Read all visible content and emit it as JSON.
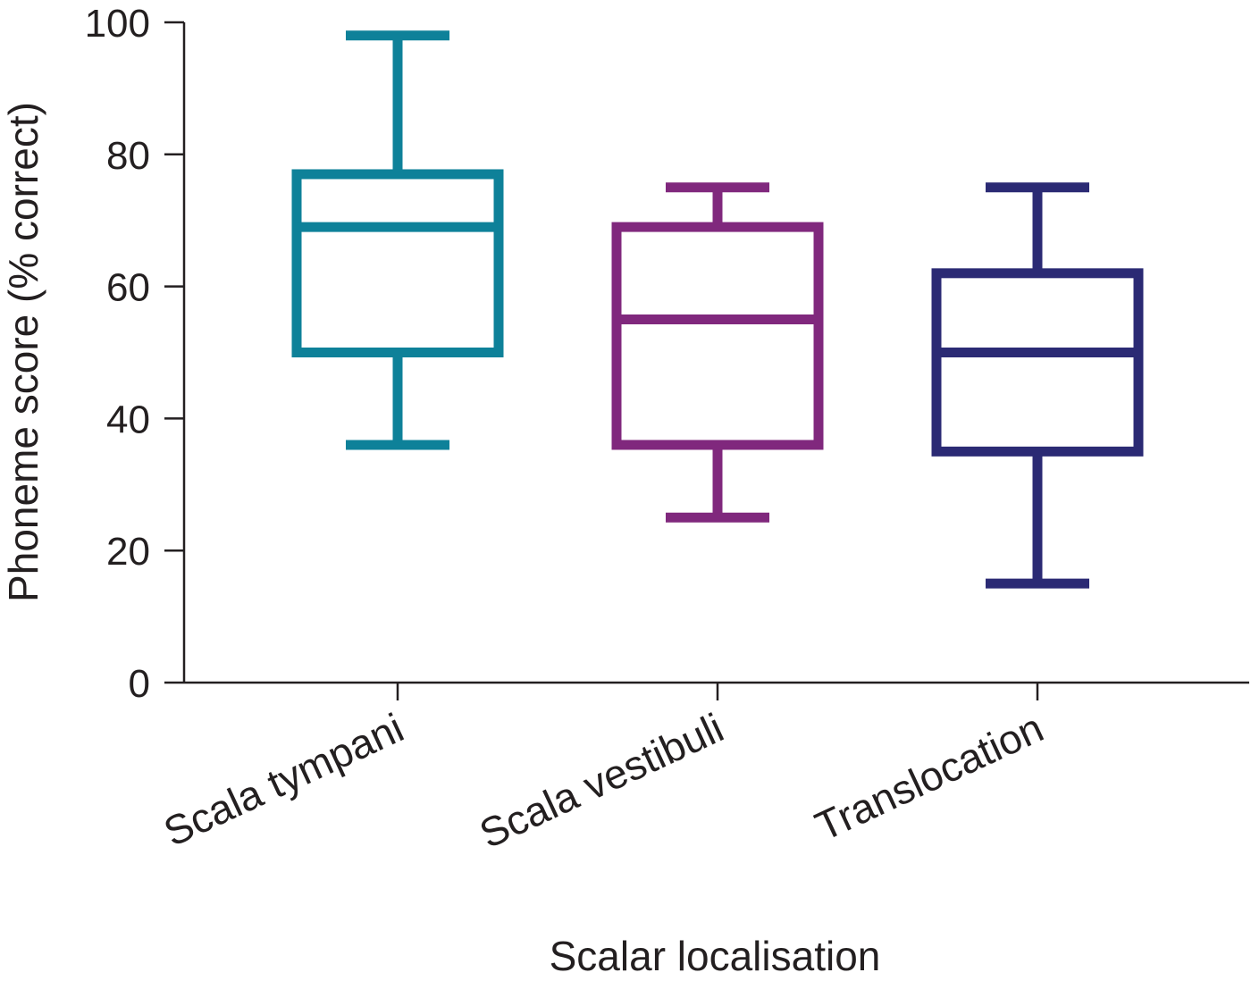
{
  "chart_data": {
    "type": "boxplot",
    "xlabel": "Scalar localisation",
    "ylabel": "Phoneme score (% correct)",
    "ylim": [
      0,
      100
    ],
    "yticks": [
      0,
      20,
      40,
      60,
      80,
      100
    ],
    "categories": [
      "Scala tympani",
      "Scala vestibuli",
      "Translocation"
    ],
    "series": [
      {
        "category": "Scala tympani",
        "color": "#0e8199",
        "min": 36,
        "q1": 50,
        "median": 69,
        "q3": 77,
        "max": 98
      },
      {
        "category": "Scala vestibuli",
        "color": "#80287d",
        "min": 25,
        "q1": 36,
        "median": 55,
        "q3": 69,
        "max": 75
      },
      {
        "category": "Translocation",
        "color": "#2b2a74",
        "min": 15,
        "q1": 35,
        "median": 50,
        "q3": 62,
        "max": 75
      }
    ],
    "grid": false,
    "legend": "none"
  }
}
